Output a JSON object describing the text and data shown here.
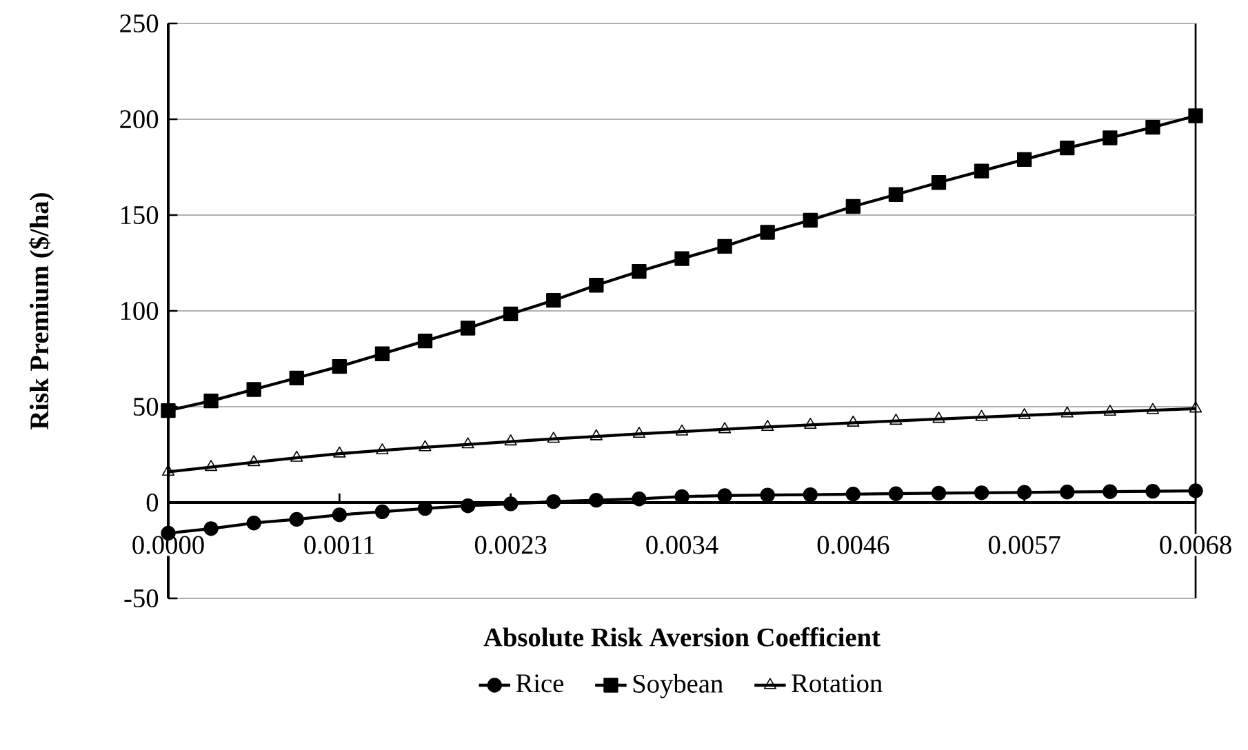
{
  "chart_data": {
    "type": "line",
    "xlabel": "Absolute Risk Aversion Coefficient",
    "ylabel": "Risk Premium ($/ha)",
    "categories": [
      "0.0000",
      null,
      null,
      null,
      "0.0011",
      null,
      null,
      null,
      "0.0023",
      null,
      null,
      null,
      "0.0034",
      null,
      null,
      null,
      "0.0046",
      null,
      null,
      null,
      "0.0057",
      null,
      null,
      null,
      "0.0068"
    ],
    "series": [
      {
        "name": "Rice",
        "color": "#000000",
        "marker": "circle",
        "values": [
          -16,
          -13.6,
          -10.7,
          -8.8,
          -6.4,
          -4.8,
          -3.1,
          -1.7,
          -0.7,
          0.5,
          1.2,
          1.9,
          3.1,
          3.6,
          3.9,
          4.1,
          4.4,
          4.6,
          4.9,
          5.1,
          5.3,
          5.5,
          5.7,
          5.9,
          6.1
        ]
      },
      {
        "name": "Soybean",
        "color": "#000000",
        "marker": "square",
        "values": [
          48,
          53,
          59,
          65,
          71,
          77.6,
          84.3,
          91,
          98.4,
          105.5,
          113.4,
          120.6,
          127.3,
          133.7,
          141,
          147.3,
          154.5,
          160.7,
          167,
          173,
          179,
          185,
          190.3,
          195.8,
          201.8
        ]
      },
      {
        "name": "Rotation",
        "color": "#000000",
        "marker": "triangle",
        "values": [
          16,
          18.5,
          21,
          23.3,
          25.5,
          27.2,
          28.8,
          30.3,
          31.8,
          33.2,
          34.5,
          35.8,
          37,
          38.2,
          39.4,
          40.5,
          41.6,
          42.6,
          43.6,
          44.6,
          45.5,
          46.4,
          47.3,
          48.2,
          49
        ]
      }
    ],
    "ylim": [
      -50,
      250
    ],
    "yticks": [
      -50,
      0,
      50,
      100,
      150,
      200,
      250
    ],
    "grid": "y",
    "legend": "bottom",
    "line_style": "solid"
  }
}
